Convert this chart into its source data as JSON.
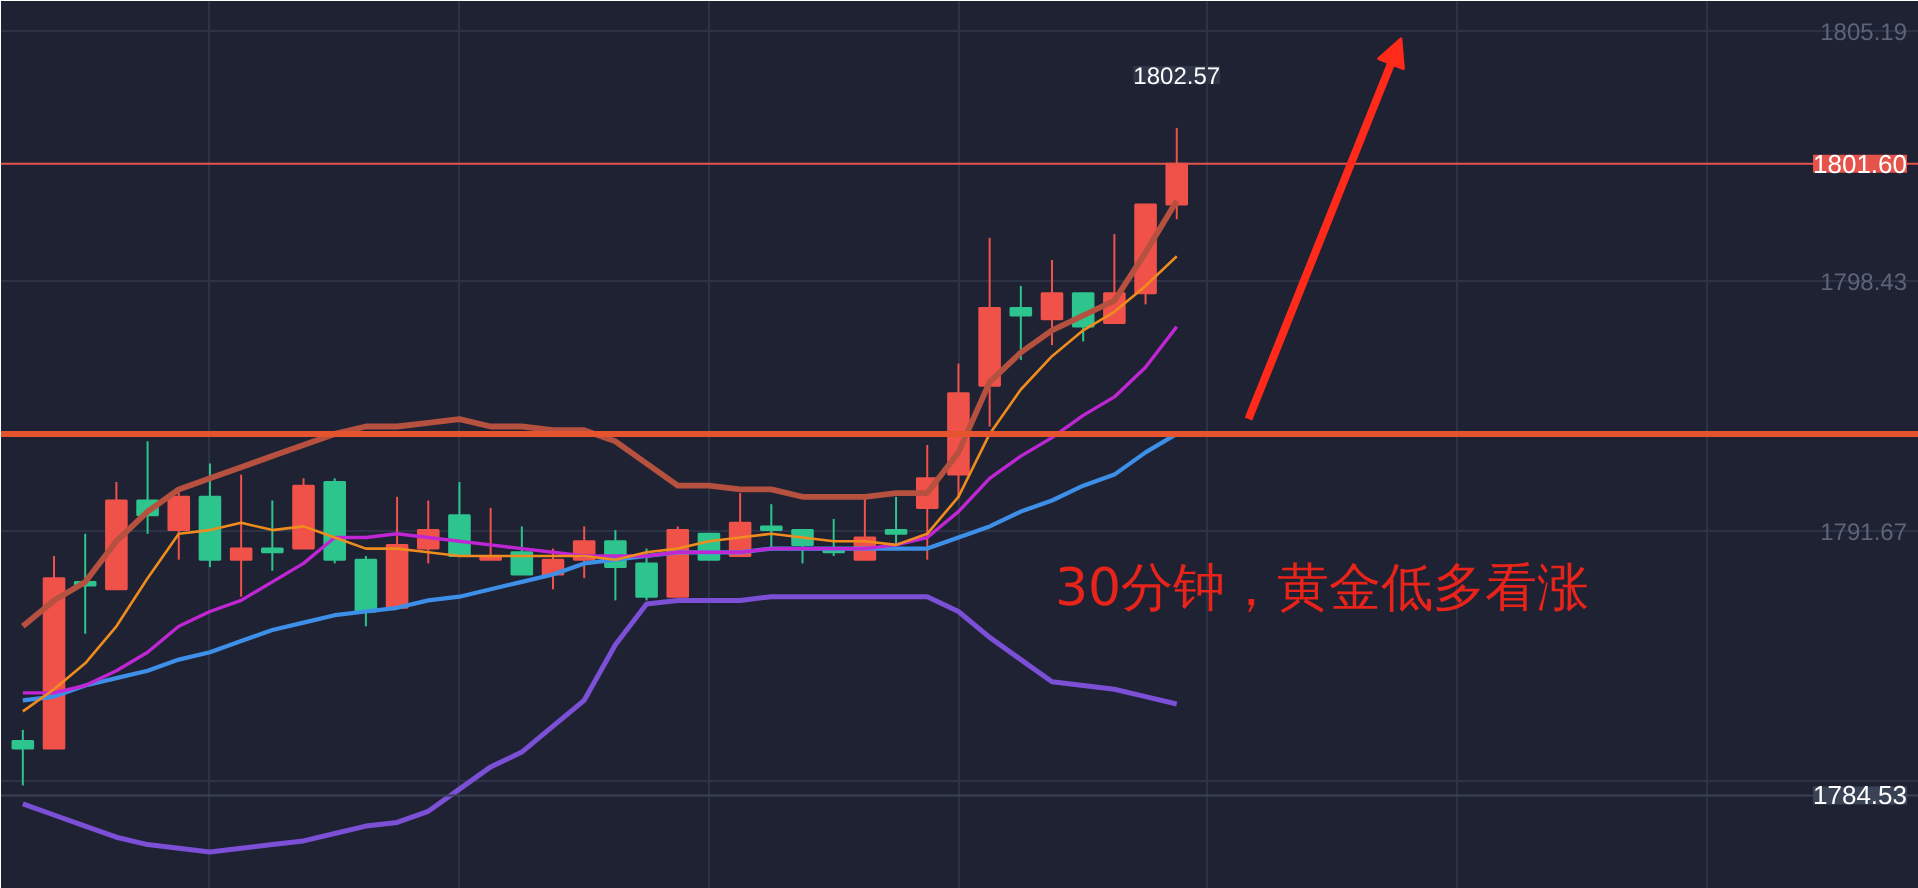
{
  "chart_data": {
    "type": "candlestick",
    "categories": [
      null,
      null,
      null,
      null,
      null,
      null,
      null,
      null,
      null,
      null,
      null,
      null,
      null,
      null,
      null,
      null,
      null,
      null,
      null,
      null,
      null,
      null,
      null,
      null,
      null,
      null,
      null,
      null,
      null,
      null,
      null,
      null,
      null,
      null,
      null,
      null,
      null,
      null
    ],
    "ohlc": [
      [
        1786.0,
        1786.3,
        1784.8,
        1785.8
      ],
      [
        1785.8,
        1791.0,
        1785.8,
        1790.4
      ],
      [
        1790.3,
        1791.6,
        1788.9,
        1790.2
      ],
      [
        1790.1,
        1793.0,
        1790.1,
        1792.5
      ],
      [
        1792.5,
        1794.1,
        1791.6,
        1792.1
      ],
      [
        1791.7,
        1792.8,
        1790.9,
        1792.6
      ],
      [
        1792.6,
        1793.5,
        1790.7,
        1790.9
      ],
      [
        1790.9,
        1793.2,
        1789.9,
        1791.2
      ],
      [
        1791.2,
        1792.5,
        1790.6,
        1791.1
      ],
      [
        1791.2,
        1793.1,
        1791.2,
        1792.9
      ],
      [
        1793.0,
        1793.1,
        1790.8,
        1790.9
      ],
      [
        1790.9,
        1791.0,
        1789.1,
        1789.5
      ],
      [
        1789.6,
        1792.6,
        1789.6,
        1791.3
      ],
      [
        1791.2,
        1792.5,
        1790.8,
        1791.7
      ],
      [
        1792.1,
        1793.0,
        1791.0,
        1791.0
      ],
      [
        1790.9,
        1792.3,
        1790.9,
        1791.0
      ],
      [
        1791.1,
        1791.8,
        1790.5,
        1790.5
      ],
      [
        1790.5,
        1791.2,
        1790.1,
        1790.9
      ],
      [
        1790.9,
        1791.8,
        1790.4,
        1791.4
      ],
      [
        1791.4,
        1791.7,
        1789.8,
        1790.7
      ],
      [
        1790.8,
        1791.2,
        1789.8,
        1789.9
      ],
      [
        1789.9,
        1791.8,
        1789.9,
        1791.7
      ],
      [
        1791.6,
        1791.6,
        1790.9,
        1790.9
      ],
      [
        1791.0,
        1792.7,
        1791.0,
        1791.9
      ],
      [
        1791.8,
        1792.4,
        1791.2,
        1791.7
      ],
      [
        1791.7,
        1791.7,
        1790.8,
        1791.3
      ],
      [
        1791.2,
        1792.0,
        1791.0,
        1791.1
      ],
      [
        1790.9,
        1792.6,
        1790.9,
        1791.5
      ],
      [
        1791.7,
        1792.6,
        1791.3,
        1791.6
      ],
      [
        1792.3,
        1794.0,
        1790.9,
        1793.1
      ],
      [
        1793.2,
        1796.2,
        1792.6,
        1795.4
      ],
      [
        1795.6,
        1799.6,
        1794.5,
        1797.7
      ],
      [
        1797.7,
        1798.3,
        1796.3,
        1797.5
      ],
      [
        1797.4,
        1799.0,
        1796.7,
        1798.1
      ],
      [
        1798.1,
        1798.1,
        1796.8,
        1797.2
      ],
      [
        1797.3,
        1799.7,
        1797.3,
        1798.1
      ],
      [
        1798.1,
        1800.5,
        1797.8,
        1800.5
      ],
      [
        1800.5,
        1802.57,
        1800.1,
        1801.6
      ]
    ],
    "colors": [
      "#2ec48e",
      "#f0524a",
      "#2ec48e",
      "#f0524a",
      "#2ec48e",
      "#f0524a",
      "#2ec48e",
      "#f0524a",
      "#2ec48e",
      "#f0524a",
      "#2ec48e",
      "#2ec48e",
      "#f0524a",
      "#f0524a",
      "#2ec48e",
      "#f0524a",
      "#2ec48e",
      "#f0524a",
      "#f0524a",
      "#2ec48e",
      "#2ec48e",
      "#f0524a",
      "#2ec48e",
      "#f0524a",
      "#2ec48e",
      "#2ec48e",
      "#2ec48e",
      "#f0524a",
      "#2ec48e",
      "#f0524a",
      "#f0524a",
      "#f0524a",
      "#2ec48e",
      "#f0524a",
      "#2ec48e",
      "#f0524a",
      "#f0524a",
      "#f0524a"
    ],
    "series": [
      {
        "type": "line",
        "color": "#b5513e",
        "values": [
          1789.1,
          1789.8,
          1790.3,
          1791.4,
          1792.2,
          1792.8,
          1793.1,
          1793.4,
          1793.7,
          1794.0,
          1794.3,
          1794.5,
          1794.5,
          1794.6,
          1794.7,
          1794.5,
          1794.5,
          1794.4,
          1794.4,
          1794.1,
          1793.5,
          1792.9,
          1792.9,
          1792.8,
          1792.8,
          1792.6,
          1792.6,
          1792.6,
          1792.7,
          1792.7,
          1793.8,
          1795.7,
          1796.5,
          1797.1,
          1797.5,
          1797.9,
          1799.2,
          1800.6
        ]
      },
      {
        "type": "line",
        "color": "#7b4fd6",
        "values": [
          1784.3,
          1784.0,
          1783.7,
          1783.4,
          1783.2,
          1783.1,
          1783.0,
          1783.1,
          1783.2,
          1783.3,
          1783.5,
          1783.7,
          1783.8,
          1784.1,
          1784.7,
          1785.3,
          1785.7,
          1786.4,
          1787.1,
          1788.6,
          1789.7,
          1789.8,
          1789.8,
          1789.8,
          1789.9,
          1789.9,
          1789.9,
          1789.9,
          1789.9,
          1789.9,
          1789.5,
          1788.8,
          1788.2,
          1787.6,
          1787.5,
          1787.4,
          1787.2,
          1787.0
        ]
      },
      {
        "type": "line",
        "color": "#3d8fe8",
        "values": [
          1787.1,
          1787.2,
          1787.5,
          1787.7,
          1787.9,
          1788.2,
          1788.4,
          1788.7,
          1789.0,
          1789.2,
          1789.4,
          1789.5,
          1789.6,
          1789.8,
          1789.9,
          1790.1,
          1790.3,
          1790.5,
          1790.8,
          1790.9,
          1791.0,
          1791.1,
          1791.1,
          1791.1,
          1791.2,
          1791.2,
          1791.2,
          1791.2,
          1791.2,
          1791.2,
          1791.5,
          1791.8,
          1792.2,
          1792.5,
          1792.9,
          1793.2,
          1793.8,
          1794.3
        ]
      },
      {
        "type": "line",
        "color": "#c026d3",
        "values": [
          1787.3,
          1787.3,
          1787.5,
          1787.9,
          1788.4,
          1789.1,
          1789.5,
          1789.8,
          1790.3,
          1790.8,
          1791.5,
          1791.5,
          1791.6,
          1791.5,
          1791.4,
          1791.3,
          1791.2,
          1791.1,
          1791.0,
          1791.0,
          1791.0,
          1791.1,
          1791.1,
          1791.1,
          1791.2,
          1791.2,
          1791.2,
          1791.2,
          1791.3,
          1791.5,
          1792.2,
          1793.1,
          1793.7,
          1794.2,
          1794.8,
          1795.3,
          1796.1,
          1797.2
        ]
      },
      {
        "type": "line",
        "color": "#f08c1e",
        "values": [
          1786.8,
          1787.4,
          1788.1,
          1789.1,
          1790.4,
          1791.6,
          1791.7,
          1791.9,
          1791.7,
          1791.8,
          1791.5,
          1791.2,
          1791.2,
          1791.1,
          1791.0,
          1791.0,
          1791.0,
          1791.0,
          1791.0,
          1790.9,
          1791.1,
          1791.2,
          1791.4,
          1791.5,
          1791.6,
          1791.5,
          1791.4,
          1791.4,
          1791.3,
          1791.6,
          1792.6,
          1794.3,
          1795.5,
          1796.4,
          1797.1,
          1797.6,
          1798.3,
          1799.1
        ]
      }
    ],
    "ylim": [
      1782.0,
      1806.0
    ],
    "yticks": [
      1805.19,
      1798.43,
      1791.67,
      {
        "value": 1784.91,
        "label": null
      }
    ],
    "grid": true,
    "tick_labels": "y",
    "ref_lines": [
      {
        "axis": "y",
        "value": 1801.6,
        "label": "1801.60",
        "color": "#e5534b"
      },
      {
        "axis": "y",
        "value": 1794.3,
        "color": "#e5532f"
      },
      {
        "axis": "y",
        "value": 1784.53,
        "label": "1784.53",
        "color": "#3a4256"
      }
    ],
    "annotations": [
      {
        "text": "1802.57",
        "y": 1802.57
      },
      "30分钟，黄金低多看涨"
    ]
  }
}
